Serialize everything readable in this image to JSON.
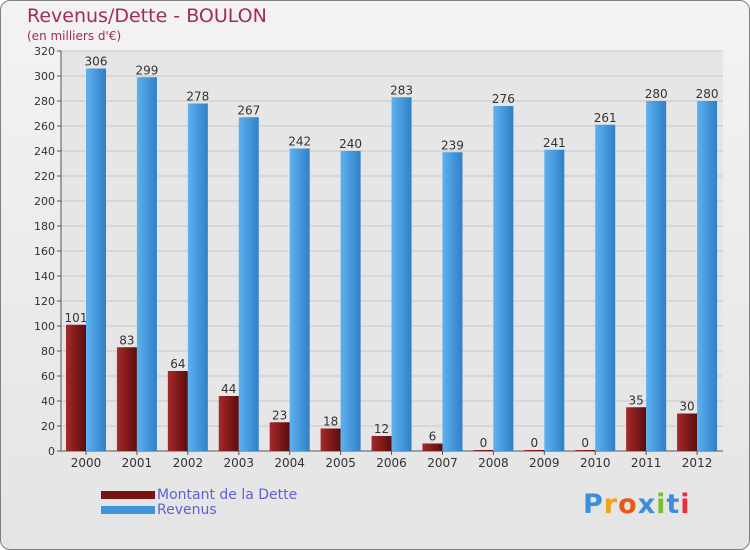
{
  "title": "Revenus/Dette - BOULON",
  "subtitle": "(en milliers d'€)",
  "legend": [
    {
      "label": "Montant de la Dette",
      "color": "#7a1212"
    },
    {
      "label": "Revenus",
      "color": "#3d95db"
    }
  ],
  "logo": {
    "letters": [
      "P",
      "r",
      "o",
      "x",
      "i",
      "t",
      "i"
    ],
    "colors": [
      "#3d8ed8",
      "#f0a21a",
      "#e45a17",
      "#3d8ed8",
      "#7cbd2b",
      "#3d8ed8",
      "#e4303a"
    ]
  },
  "chart_data": {
    "type": "bar",
    "title": "Revenus/Dette - BOULON",
    "ylabel": "(en milliers d'€)",
    "xlabel": "",
    "categories": [
      "2000",
      "2001",
      "2002",
      "2003",
      "2004",
      "2005",
      "2006",
      "2007",
      "2008",
      "2009",
      "2010",
      "2011",
      "2012"
    ],
    "series": [
      {
        "name": "Montant de la Dette",
        "color": "#7a1212",
        "values": [
          101,
          83,
          64,
          44,
          23,
          18,
          12,
          6,
          0,
          0,
          0,
          35,
          30
        ]
      },
      {
        "name": "Revenus",
        "color": "#3d95db",
        "values": [
          306,
          299,
          278,
          267,
          242,
          240,
          283,
          239,
          276,
          241,
          261,
          280,
          280
        ]
      }
    ],
    "ylim": [
      0,
      320
    ],
    "ytick_step": 20,
    "grid": true
  }
}
